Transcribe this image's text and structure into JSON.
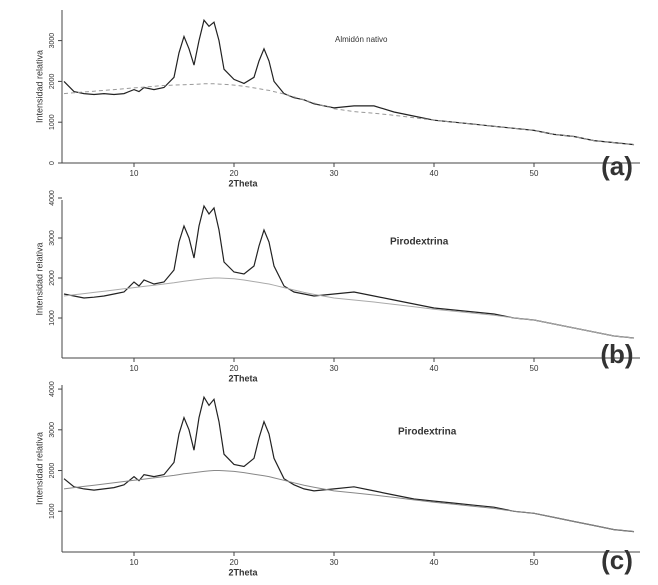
{
  "chart_data": [
    {
      "type": "line",
      "annotation": "Almidón nativo",
      "panel_label": "(a)",
      "x_label": "2Theta",
      "y_label": "Intensidad relativa",
      "x": [
        3,
        4,
        5,
        6,
        7,
        8,
        9,
        10,
        10.5,
        11,
        12,
        13,
        14,
        14.5,
        15,
        15.5,
        16,
        16.5,
        17,
        17.5,
        18,
        18.5,
        19,
        20,
        21,
        22,
        22.5,
        23,
        23.5,
        24,
        25,
        26,
        27,
        28,
        30,
        32,
        34,
        36,
        38,
        40,
        42,
        44,
        46,
        48,
        50,
        52,
        54,
        56,
        58,
        60
      ],
      "series": [
        {
          "color": "#222222",
          "values": [
            2000,
            1750,
            1700,
            1680,
            1700,
            1680,
            1700,
            1800,
            1750,
            1850,
            1800,
            1850,
            2100,
            2700,
            3100,
            2800,
            2400,
            3000,
            3500,
            3350,
            3450,
            3000,
            2300,
            2050,
            1950,
            2100,
            2500,
            2800,
            2500,
            2000,
            1700,
            1600,
            1550,
            1450,
            1350,
            1400,
            1400,
            1250,
            1150,
            1050,
            1000,
            950,
            900,
            850,
            800,
            700,
            650,
            550,
            500,
            450
          ]
        },
        {
          "color": "#999999",
          "dashed": true,
          "values": [
            1700,
            1720,
            1740,
            1760,
            1780,
            1800,
            1820,
            1840,
            1850,
            1860,
            1880,
            1900,
            1910,
            1915,
            1920,
            1925,
            1930,
            1935,
            1940,
            1940,
            1940,
            1935,
            1930,
            1910,
            1880,
            1840,
            1820,
            1800,
            1780,
            1750,
            1690,
            1620,
            1550,
            1470,
            1330,
            1260,
            1220,
            1170,
            1110,
            1050,
            1000,
            950,
            900,
            850,
            800,
            700,
            650,
            550,
            500,
            450
          ]
        }
      ],
      "xlim": [
        2.8,
        60.6
      ],
      "xticks": [
        10,
        20,
        30,
        40,
        50
      ],
      "ylim": [
        0,
        3750
      ],
      "yticks": [
        0,
        1000,
        2000,
        3000
      ]
    },
    {
      "type": "line",
      "annotation": "Pirodextrina",
      "panel_label": "(b)",
      "x_label": "2Theta",
      "y_label": "Intensidad relativa",
      "x": [
        3,
        4,
        5,
        6,
        7,
        8,
        9,
        10,
        10.5,
        11,
        12,
        13,
        14,
        14.5,
        15,
        15.5,
        16,
        16.5,
        17,
        17.5,
        18,
        18.5,
        19,
        20,
        21,
        22,
        22.5,
        23,
        23.5,
        24,
        25,
        26,
        27,
        28,
        30,
        32,
        34,
        36,
        38,
        40,
        42,
        44,
        46,
        48,
        50,
        52,
        54,
        56,
        58,
        60
      ],
      "series": [
        {
          "color": "#222222",
          "values": [
            1600,
            1550,
            1500,
            1520,
            1550,
            1600,
            1650,
            1900,
            1800,
            1950,
            1850,
            1900,
            2200,
            2900,
            3300,
            3000,
            2500,
            3300,
            3800,
            3600,
            3750,
            3200,
            2400,
            2150,
            2100,
            2300,
            2800,
            3200,
            2900,
            2300,
            1800,
            1650,
            1600,
            1550,
            1600,
            1650,
            1550,
            1450,
            1350,
            1250,
            1200,
            1150,
            1100,
            1000,
            950,
            850,
            750,
            650,
            550,
            500
          ]
        },
        {
          "color": "#aaaaaa",
          "dashed": false,
          "values": [
            1550,
            1580,
            1610,
            1640,
            1670,
            1700,
            1730,
            1760,
            1775,
            1790,
            1820,
            1850,
            1880,
            1900,
            1920,
            1935,
            1950,
            1965,
            1980,
            1990,
            2000,
            2000,
            1995,
            1980,
            1950,
            1910,
            1890,
            1870,
            1850,
            1820,
            1760,
            1700,
            1640,
            1590,
            1500,
            1450,
            1400,
            1340,
            1280,
            1220,
            1170,
            1120,
            1070,
            1000,
            950,
            850,
            750,
            650,
            550,
            500
          ]
        }
      ],
      "xlim": [
        2.8,
        60.6
      ],
      "xticks": [
        10,
        20,
        30,
        40,
        50
      ],
      "ylim": [
        0,
        3950
      ],
      "yticks": [
        1000,
        2000,
        3000,
        4000
      ]
    },
    {
      "type": "line",
      "annotation": "Pirodextrina",
      "panel_label": "(c)",
      "x_label": "2Theta",
      "y_label": "Intensidad relativa",
      "x": [
        3,
        4,
        5,
        6,
        7,
        8,
        9,
        10,
        10.5,
        11,
        12,
        13,
        14,
        14.5,
        15,
        15.5,
        16,
        16.5,
        17,
        17.5,
        18,
        18.5,
        19,
        20,
        21,
        22,
        22.5,
        23,
        23.5,
        24,
        25,
        26,
        27,
        28,
        30,
        32,
        34,
        36,
        38,
        40,
        42,
        44,
        46,
        48,
        50,
        52,
        54,
        56,
        58,
        60
      ],
      "series": [
        {
          "color": "#222222",
          "values": [
            1800,
            1600,
            1550,
            1520,
            1550,
            1580,
            1650,
            1850,
            1750,
            1900,
            1850,
            1900,
            2200,
            2900,
            3300,
            3000,
            2500,
            3300,
            3800,
            3600,
            3750,
            3200,
            2400,
            2150,
            2100,
            2300,
            2800,
            3200,
            2900,
            2300,
            1800,
            1650,
            1550,
            1500,
            1550,
            1600,
            1500,
            1400,
            1300,
            1250,
            1200,
            1150,
            1100,
            1000,
            950,
            850,
            750,
            650,
            550,
            500
          ]
        },
        {
          "color": "#888888",
          "dashed": false,
          "values": [
            1550,
            1580,
            1610,
            1640,
            1670,
            1700,
            1730,
            1760,
            1775,
            1790,
            1820,
            1850,
            1880,
            1900,
            1920,
            1935,
            1950,
            1965,
            1980,
            1990,
            2000,
            2000,
            1995,
            1980,
            1950,
            1910,
            1890,
            1870,
            1850,
            1820,
            1760,
            1700,
            1640,
            1590,
            1500,
            1450,
            1400,
            1340,
            1280,
            1220,
            1170,
            1120,
            1070,
            1000,
            950,
            850,
            750,
            650,
            550,
            500
          ]
        }
      ],
      "xlim": [
        2.8,
        60.6
      ],
      "xticks": [
        10,
        20,
        30,
        40,
        50
      ],
      "ylim": [
        0,
        4100
      ],
      "yticks": [
        1000,
        2000,
        3000,
        4000
      ]
    }
  ]
}
